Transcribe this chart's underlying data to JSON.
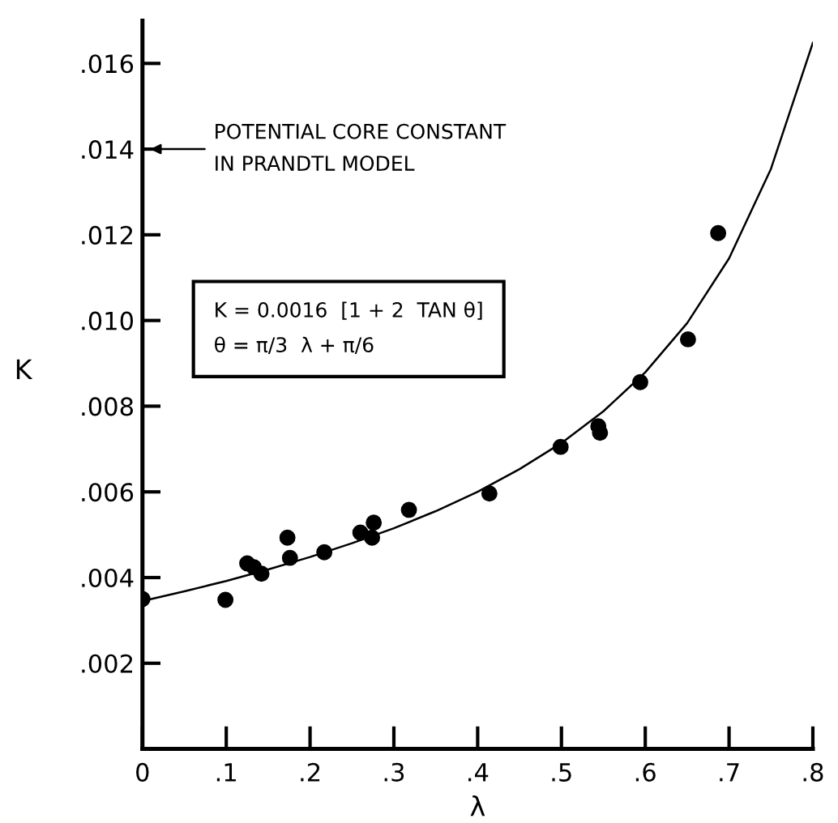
{
  "chart_data": {
    "type": "scatter",
    "xlabel": "λ",
    "ylabel": "K",
    "xlim": [
      0,
      0.8
    ],
    "ylim": [
      0,
      0.017
    ],
    "xticks": [
      0,
      {
        "value": 0.1,
        "label": ".1"
      },
      {
        "value": 0.2,
        "label": ".2"
      },
      {
        "value": 0.3,
        "label": ".3"
      },
      {
        "value": 0.4,
        "label": ".4"
      },
      {
        "value": 0.5,
        "label": ".5"
      },
      {
        "value": 0.6,
        "label": ".6"
      },
      {
        "value": 0.7,
        "label": ".7"
      },
      {
        "value": 0.8,
        "label": ".8"
      }
    ],
    "yticks": [
      {
        "value": 0.002,
        "label": ".002"
      },
      {
        "value": 0.004,
        "label": ".004"
      },
      {
        "value": 0.006,
        "label": ".006"
      },
      {
        "value": 0.008,
        "label": ".008"
      },
      {
        "value": 0.01,
        "label": ".010"
      },
      {
        "value": 0.012,
        "label": ".012"
      },
      {
        "value": 0.014,
        "label": ".014"
      },
      {
        "value": 0.016,
        "label": ".016"
      }
    ],
    "grid": false,
    "legend": false,
    "marker": "circle",
    "series": [
      {
        "color": "#000000",
        "x": [
          0,
          0.099,
          0.125,
          0.133,
          0.142,
          0.173,
          0.176,
          0.217,
          0.26,
          0.276,
          0.274,
          0.318,
          0.414,
          0.499,
          0.544,
          0.546,
          0.594,
          0.651,
          0.687
        ],
        "values": [
          0.0035,
          0.00348,
          0.00433,
          0.00424,
          0.00409,
          0.00493,
          0.00446,
          0.00459,
          0.00505,
          0.00528,
          0.00493,
          0.00558,
          0.00596,
          0.00705,
          0.00753,
          0.00738,
          0.00856,
          0.00956,
          0.01204
        ]
      },
      {
        "type": "line",
        "color": "#000000",
        "line_style": "solid",
        "marker": "none",
        "x": [
          0,
          0.05,
          0.1,
          0.15,
          0.2,
          0.25,
          0.3,
          0.35,
          0.4,
          0.45,
          0.5,
          0.55,
          0.6,
          0.65,
          0.7,
          0.75,
          0.8
        ],
        "values": [
          0.00345,
          0.00368,
          0.00392,
          0.00419,
          0.00448,
          0.0048,
          0.00515,
          0.00555,
          0.006,
          0.00653,
          0.00714,
          0.00788,
          0.00879,
          0.00994,
          0.01145,
          0.01354,
          0.01648
        ]
      }
    ],
    "annotations": [
      "POTENTIAL CORE CONSTANT\nIN PRANDTL MODEL",
      "K = 0.0016  [1 + 2  TAN θ]\nθ = π/3  λ + π/6"
    ]
  }
}
